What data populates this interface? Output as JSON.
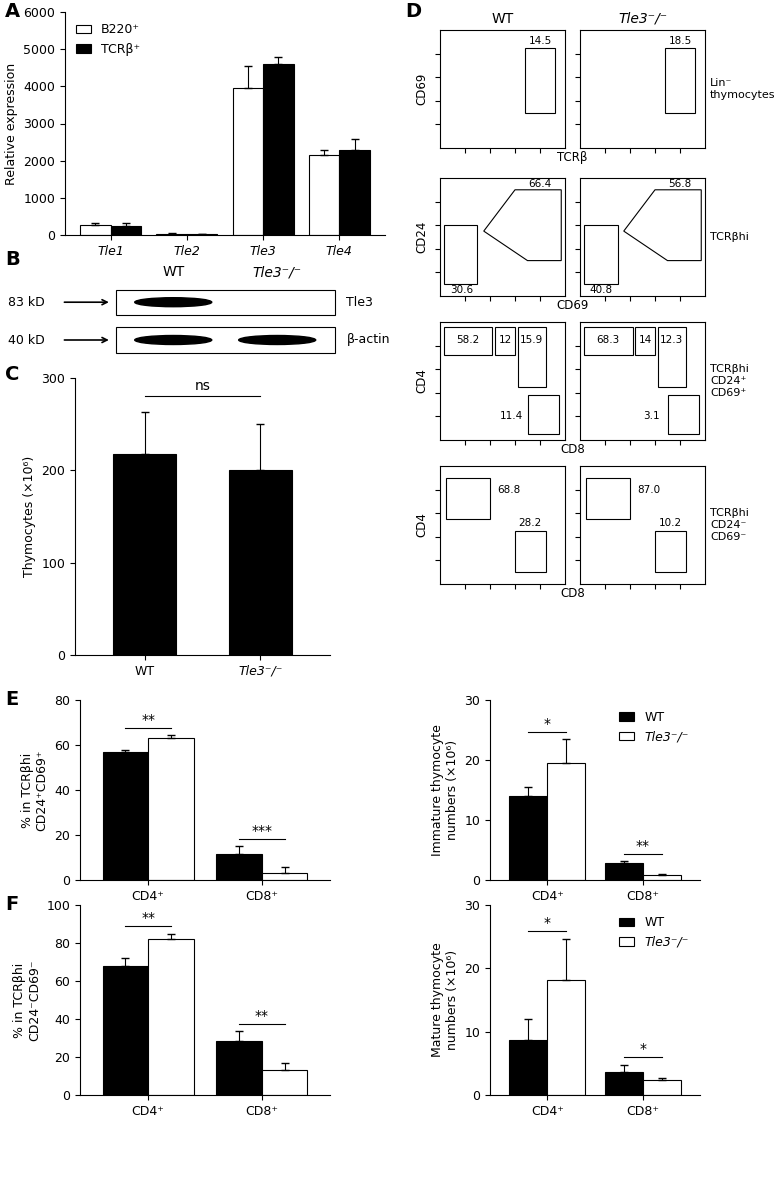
{
  "chart_data": [
    {
      "panel_label": "A",
      "type": "bar",
      "categories": [
        "Tle1",
        "Tle2",
        "Tle3",
        "Tle4"
      ],
      "series": [
        {
          "name": "B220⁺",
          "color": "#ffffff",
          "values": [
            280,
            40,
            3950,
            2150
          ],
          "errors": [
            50,
            10,
            600,
            150
          ]
        },
        {
          "name": "TCRβ⁺",
          "color": "#000000",
          "values": [
            250,
            30,
            4600,
            2300
          ],
          "errors": [
            80,
            10,
            200,
            280
          ]
        }
      ],
      "ylabel": "Relative expression",
      "ylim": [
        0,
        6000
      ],
      "yticks": [
        0,
        1000,
        2000,
        3000,
        4000,
        5000,
        6000
      ],
      "legend": "upper left"
    },
    {
      "panel_label": "B",
      "type": "blot",
      "lanes": [
        "WT",
        "Tle3⁻/⁻"
      ],
      "rows": [
        {
          "size": "83 kD",
          "name": "Tle3",
          "bands": [
            true,
            false
          ]
        },
        {
          "size": "40 kD",
          "name": "β-actin",
          "bands": [
            true,
            true
          ]
        }
      ]
    },
    {
      "panel_label": "C",
      "type": "bar",
      "categories": [
        "WT",
        "Tle3⁻/⁻"
      ],
      "values": [
        218,
        200
      ],
      "errors": [
        45,
        50
      ],
      "color": "#000000",
      "ylabel": "Thymocytes (×10⁶)",
      "ylim": [
        0,
        300
      ],
      "yticks": [
        0,
        100,
        200,
        300
      ],
      "significance": "ns"
    },
    {
      "panel_label": "D",
      "type": "flow",
      "columns": [
        "WT",
        "Tle3⁻/⁻"
      ],
      "tick_labels": false,
      "rows": [
        {
          "name": "Lin⁻\nthymocytes",
          "xlabel": "TCRβ",
          "ylabel": "CD69",
          "gates": [
            [
              14.5
            ],
            [
              18.5
            ]
          ]
        },
        {
          "name": "TCRβhi",
          "xlabel": "CD69",
          "ylabel": "CD24",
          "gates": [
            [
              66.4,
              30.6
            ],
            [
              56.8,
              40.8
            ]
          ]
        },
        {
          "name": "TCRβhi\nCD24⁺\nCD69⁺",
          "xlabel": "CD8",
          "ylabel": "CD4",
          "gates": [
            [
              58.2,
              12,
              15.9,
              11.4
            ],
            [
              68.3,
              14,
              12.3,
              3.1
            ]
          ]
        },
        {
          "name": "TCRβhi\nCD24⁻\nCD69⁻",
          "xlabel": "CD8",
          "ylabel": "CD4",
          "gates": [
            [
              68.8,
              28.2
            ],
            [
              87.0,
              10.2
            ]
          ]
        }
      ]
    },
    {
      "panel_label": "E",
      "type": "bar",
      "categories": [
        "CD4⁺",
        "CD8⁺"
      ],
      "series": [
        {
          "name": "WT",
          "color": "#000000",
          "values": [
            57,
            11.5
          ],
          "errors": [
            1,
            3.5
          ]
        },
        {
          "name": "Tle3⁻/⁻",
          "color": "#ffffff",
          "values": [
            63,
            3
          ],
          "errors": [
            1.5,
            3
          ]
        }
      ],
      "ylabel": "% in TCRβhi\nCD24⁺CD69⁺",
      "ylim": [
        0,
        80
      ],
      "yticks": [
        0,
        20,
        40,
        60,
        80
      ],
      "significance": [
        "**",
        "***"
      ]
    },
    {
      "type": "bar",
      "categories": [
        "CD4⁺",
        "CD8⁺"
      ],
      "series": [
        {
          "name": "WT",
          "color": "#000000",
          "values": [
            14,
            2.8
          ],
          "errors": [
            1.5,
            0.3
          ]
        },
        {
          "name": "Tle3⁻/⁻",
          "color": "#ffffff",
          "values": [
            19.5,
            0.8
          ],
          "errors": [
            4,
            0.2
          ]
        }
      ],
      "ylabel": "Immature thymocyte\nnumbers (×10⁶)",
      "ylim": [
        0,
        30
      ],
      "yticks": [
        0,
        10,
        20,
        30
      ],
      "significance": [
        "*",
        "**"
      ],
      "legend": "upper right"
    },
    {
      "panel_label": "F",
      "type": "bar",
      "categories": [
        "CD4⁺",
        "CD8⁺"
      ],
      "series": [
        {
          "name": "WT",
          "color": "#000000",
          "values": [
            68,
            28.5
          ],
          "errors": [
            4,
            5
          ]
        },
        {
          "name": "Tle3⁻/⁻",
          "color": "#ffffff",
          "values": [
            82,
            13
          ],
          "errors": [
            3,
            4
          ]
        }
      ],
      "ylabel": "% in TCRβhi\nCD24⁻CD69⁻",
      "ylim": [
        0,
        100
      ],
      "yticks": [
        0,
        20,
        40,
        60,
        80,
        100
      ],
      "significance": [
        "**",
        "**"
      ]
    },
    {
      "type": "bar",
      "categories": [
        "CD4⁺",
        "CD8⁺"
      ],
      "series": [
        {
          "name": "WT",
          "color": "#000000",
          "values": [
            8.7,
            3.6
          ],
          "errors": [
            3.3,
            1.2
          ]
        },
        {
          "name": "Tle3⁻/⁻",
          "color": "#ffffff",
          "values": [
            18.2,
            2.4
          ],
          "errors": [
            6.5,
            0.3
          ]
        }
      ],
      "ylabel": "Mature thymocyte\nnumbers (×10⁶)",
      "ylim": [
        0,
        30
      ],
      "yticks": [
        0,
        10,
        20,
        30
      ],
      "significance": [
        "*",
        "*"
      ],
      "legend": "upper right"
    }
  ]
}
